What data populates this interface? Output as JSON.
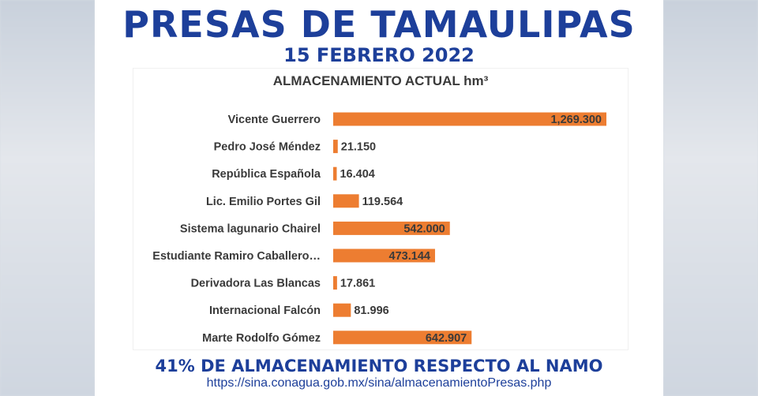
{
  "header": {
    "title": "PRESAS DE TAMAULIPAS",
    "date": "15 FEBRERO 2022"
  },
  "chart_data": {
    "type": "bar",
    "orientation": "horizontal",
    "title": "ALMACENAMIENTO ACTUAL  hm³",
    "categories": [
      "Vicente Guerrero",
      "Pedro José Méndez",
      "República Española",
      "Lic. Emilio Portes Gil",
      "Sistema lagunario Chairel",
      "Estudiante Ramiro Caballero…",
      "Derivadora Las Blancas",
      "Internacional Falcón",
      "Marte Rodolfo Gómez"
    ],
    "values": [
      1269.3,
      21.15,
      16.404,
      119.564,
      542.0,
      473.144,
      17.861,
      81.996,
      642.907
    ],
    "labels": [
      "1,269.300",
      "21.150",
      "16.404",
      "119.564",
      "542.000",
      "473.144",
      "17.861",
      "81.996",
      "642.907"
    ],
    "bar_color": "#ed7d31",
    "xlim": [
      0,
      1400
    ]
  },
  "footer": {
    "summary": "41% DE ALMACENAMIENTO RESPECTO AL NAMO",
    "url": "https://sina.conagua.gob.mx/sina/almacenamientoPresas.php"
  }
}
